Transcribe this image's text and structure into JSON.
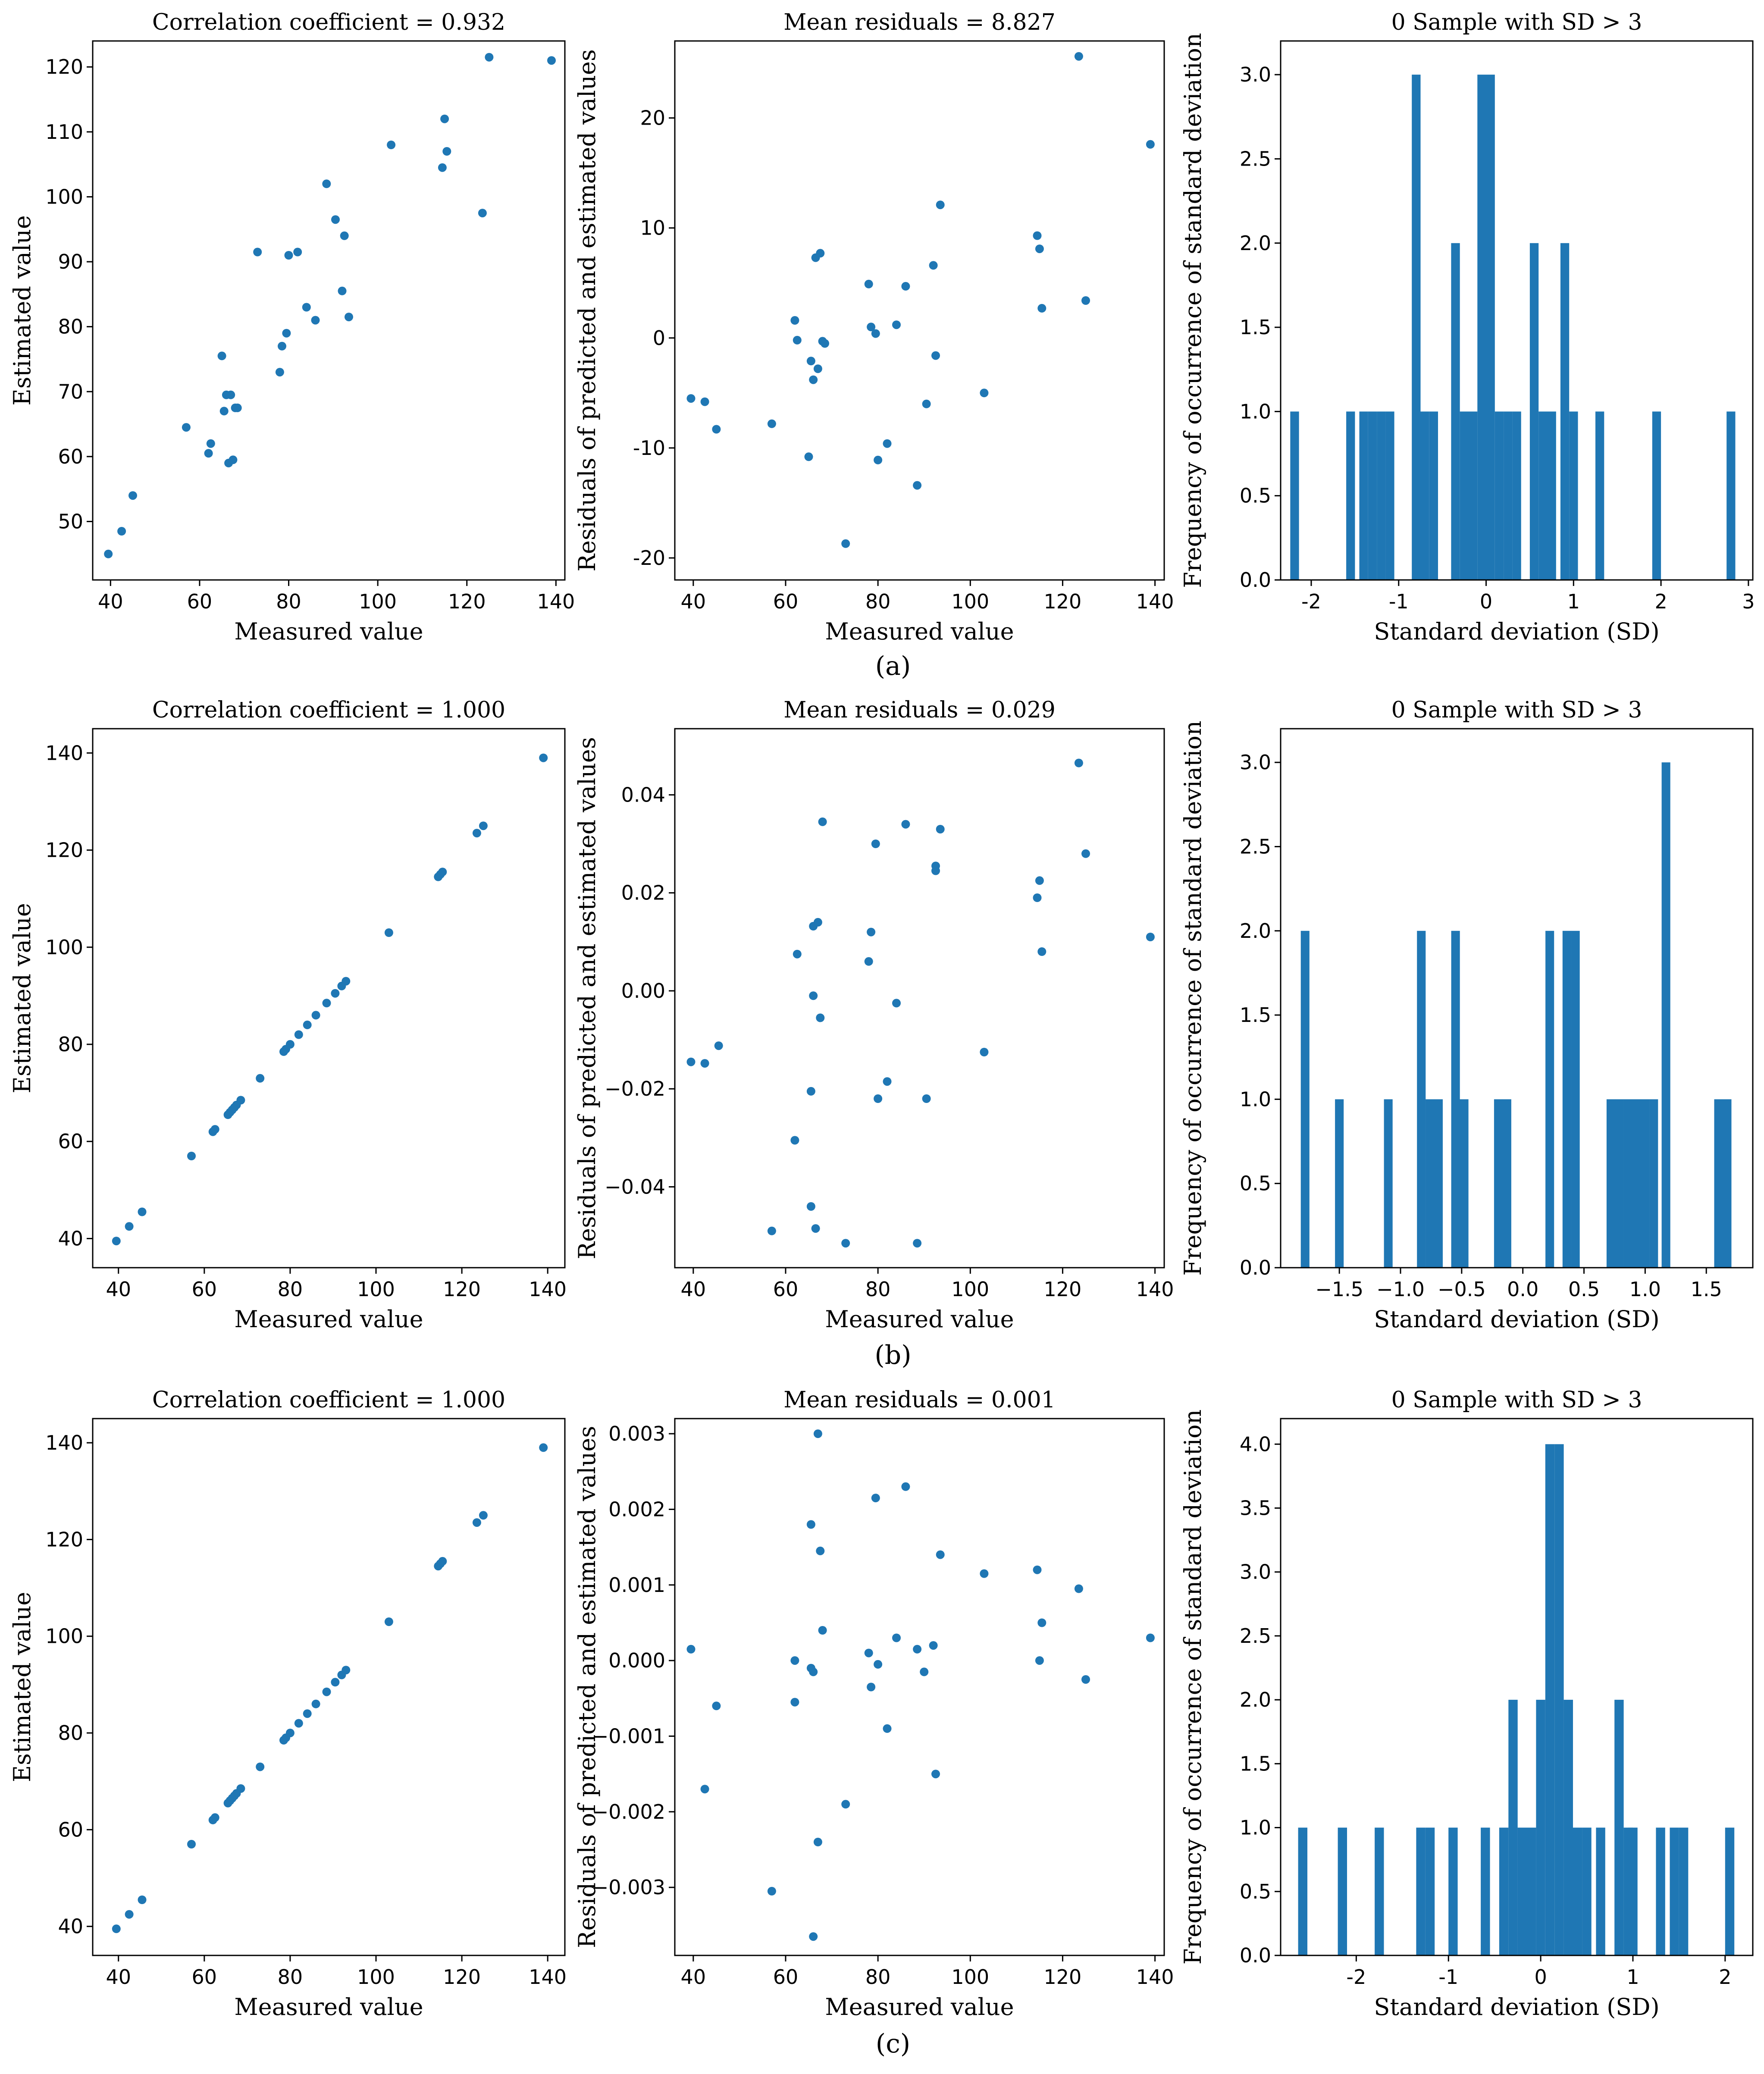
{
  "colors": {
    "series": "#1f77b4",
    "axis": "#000000",
    "background": "#ffffff"
  },
  "captions": [
    "(a)",
    "(b)",
    "(c)"
  ],
  "chart_data": [
    {
      "id": "a-scatter",
      "type": "scatter",
      "row": 0,
      "col": 0,
      "title": "Correlation coefficient = 0.932",
      "xlabel": "Measured value",
      "ylabel": "Estimated value",
      "xlim": [
        36,
        142
      ],
      "ylim": [
        41,
        124
      ],
      "xticks": [
        40,
        60,
        80,
        100,
        120,
        140
      ],
      "yticks": [
        50,
        60,
        70,
        80,
        90,
        100,
        110,
        120
      ],
      "x": [
        39.5,
        42.5,
        45.0,
        57.0,
        62.0,
        62.5,
        65.0,
        65.5,
        66.0,
        66.5,
        67.0,
        67.5,
        68.0,
        68.5,
        73.0,
        78.0,
        78.5,
        79.5,
        80.0,
        82.0,
        84.0,
        86.0,
        88.5,
        90.5,
        92.0,
        92.5,
        93.5,
        103.0,
        114.5,
        115.0,
        115.5,
        123.5,
        125.0,
        139.0
      ],
      "y": [
        45.0,
        48.5,
        54.0,
        64.5,
        60.5,
        62.0,
        75.5,
        67.0,
        69.5,
        59.0,
        69.5,
        59.5,
        67.5,
        67.5,
        91.5,
        73.0,
        77.0,
        79.0,
        91.0,
        91.5,
        83.0,
        81.0,
        102.0,
        96.5,
        85.5,
        94.0,
        81.5,
        108.0,
        104.5,
        112.0,
        107.0,
        97.5,
        121.5,
        121.0
      ]
    },
    {
      "id": "a-resid",
      "type": "scatter",
      "row": 0,
      "col": 1,
      "title": "Mean residuals = 8.827",
      "xlabel": "Measured value",
      "ylabel": "Residuals of predicted and estimated values",
      "xlim": [
        36,
        142
      ],
      "ylim": [
        -22,
        27
      ],
      "xticks": [
        40,
        60,
        80,
        100,
        120,
        140
      ],
      "yticks": [
        -20,
        -10,
        0,
        10,
        20
      ],
      "x": [
        39.5,
        42.5,
        45.0,
        57.0,
        62.0,
        62.5,
        65.0,
        65.5,
        66.0,
        66.5,
        67.0,
        67.5,
        68.0,
        68.5,
        73.0,
        78.0,
        78.5,
        79.5,
        80.0,
        82.0,
        84.0,
        86.0,
        88.5,
        90.5,
        92.0,
        92.5,
        93.5,
        103.0,
        114.5,
        115.0,
        115.5,
        123.5,
        125.0,
        139.0
      ],
      "y": [
        -5.5,
        -5.8,
        -8.3,
        -7.8,
        1.6,
        -0.2,
        -10.8,
        -2.1,
        -3.8,
        7.3,
        -2.8,
        7.7,
        -0.3,
        -0.5,
        -18.7,
        4.9,
        1.0,
        0.4,
        -11.1,
        -9.6,
        1.2,
        4.7,
        -13.4,
        -6.0,
        6.6,
        -1.6,
        12.1,
        -5.0,
        9.3,
        8.1,
        2.7,
        25.6,
        3.4,
        17.6
      ]
    },
    {
      "id": "a-hist",
      "type": "bar",
      "row": 0,
      "col": 2,
      "title": "0 Sample with SD > 3",
      "xlabel": "Standard deviation (SD)",
      "ylabel": "Frequency of occurrence of standard deviation",
      "xlim": [
        -2.35,
        3.05
      ],
      "ylim": [
        0,
        3.2
      ],
      "xticks": [
        -2,
        -1,
        0,
        1,
        2,
        3
      ],
      "yticks": [
        0.0,
        0.5,
        1.0,
        1.5,
        2.0,
        2.5,
        3.0
      ],
      "bin_width": 0.1,
      "bins": [
        [
          -2.19,
          1
        ],
        [
          -1.55,
          1
        ],
        [
          -1.4,
          1
        ],
        [
          -1.3,
          1
        ],
        [
          -1.2,
          1
        ],
        [
          -1.1,
          1
        ],
        [
          -0.8,
          3
        ],
        [
          -0.7,
          1
        ],
        [
          -0.6,
          1
        ],
        [
          -0.35,
          2
        ],
        [
          -0.25,
          1
        ],
        [
          -0.15,
          1
        ],
        [
          -0.05,
          3
        ],
        [
          0.05,
          3
        ],
        [
          0.15,
          1
        ],
        [
          0.25,
          1
        ],
        [
          0.35,
          1
        ],
        [
          0.55,
          2
        ],
        [
          0.65,
          1
        ],
        [
          0.75,
          1
        ],
        [
          0.9,
          2
        ],
        [
          1.0,
          1
        ],
        [
          1.3,
          1
        ],
        [
          1.95,
          1
        ],
        [
          2.8,
          1
        ]
      ]
    },
    {
      "id": "b-scatter",
      "type": "scatter",
      "row": 1,
      "col": 0,
      "title": "Correlation coefficient = 1.000",
      "xlabel": "Measured value",
      "ylabel": "Estimated value",
      "xlim": [
        34,
        144
      ],
      "ylim": [
        34,
        145
      ],
      "xticks": [
        40,
        60,
        80,
        100,
        120,
        140
      ],
      "yticks": [
        40,
        60,
        80,
        100,
        120,
        140
      ],
      "x": [
        39.5,
        42.5,
        45.5,
        57.0,
        62.0,
        62.5,
        65.5,
        66.0,
        66.5,
        67.0,
        67.5,
        68.5,
        73.0,
        78.5,
        79.0,
        80.0,
        82.0,
        84.0,
        86.0,
        88.5,
        90.5,
        92.0,
        93.0,
        103.0,
        114.5,
        115.0,
        115.5,
        123.5,
        125.0,
        139.0
      ],
      "y": [
        39.5,
        42.5,
        45.5,
        57.0,
        62.0,
        62.5,
        65.5,
        66.0,
        66.5,
        67.0,
        67.5,
        68.5,
        73.0,
        78.5,
        79.0,
        80.0,
        82.0,
        84.0,
        86.0,
        88.5,
        90.5,
        92.0,
        93.0,
        103.0,
        114.5,
        115.0,
        115.5,
        123.5,
        125.0,
        139.0
      ]
    },
    {
      "id": "b-resid",
      "type": "scatter",
      "row": 1,
      "col": 1,
      "title": "Mean residuals = 0.029",
      "xlabel": "Measured value",
      "ylabel": "Residuals of predicted and estimated values",
      "xlim": [
        36,
        142
      ],
      "ylim": [
        -0.0565,
        0.0535
      ],
      "xticks": [
        40,
        60,
        80,
        100,
        120,
        140
      ],
      "yticks": [
        -0.04,
        -0.02,
        0.0,
        0.02,
        0.04
      ],
      "ytick_labels": [
        "−0.04",
        "−0.02",
        "0.00",
        "0.02",
        "0.04"
      ],
      "x": [
        39.5,
        42.5,
        45.5,
        57.0,
        62.0,
        62.5,
        65.5,
        65.5,
        66.0,
        66.0,
        66.5,
        67.0,
        67.5,
        68.0,
        73.0,
        78.0,
        78.5,
        79.5,
        80.0,
        82.0,
        84.0,
        86.0,
        88.5,
        90.5,
        92.5,
        92.5,
        93.5,
        103.0,
        114.5,
        115.0,
        115.5,
        123.5,
        125.0,
        139.0
      ],
      "y": [
        -0.0145,
        -0.0148,
        -0.0112,
        -0.049,
        -0.0305,
        0.0075,
        -0.0205,
        -0.044,
        0.0132,
        -0.001,
        -0.0485,
        0.014,
        -0.0055,
        0.0345,
        -0.0515,
        0.006,
        0.012,
        0.03,
        -0.022,
        -0.0185,
        -0.0025,
        0.034,
        -0.0515,
        -0.022,
        0.0255,
        0.0245,
        0.033,
        -0.0125,
        0.019,
        0.0225,
        0.008,
        0.0465,
        0.028,
        0.011
      ]
    },
    {
      "id": "b-hist",
      "type": "bar",
      "row": 1,
      "col": 2,
      "title": "0 Sample with SD > 3",
      "xlabel": "Standard deviation (SD)",
      "ylabel": "Frequency of occurrence of standard deviation",
      "xlim": [
        -1.98,
        1.88
      ],
      "ylim": [
        0,
        3.2
      ],
      "xticks": [
        -1.5,
        -1.0,
        -0.5,
        0.0,
        0.5,
        1.0,
        1.5
      ],
      "xtick_labels": [
        "−1.5",
        "−1.0",
        "−0.5",
        "0.0",
        "0.5",
        "1.0",
        "1.5"
      ],
      "yticks": [
        0.0,
        0.5,
        1.0,
        1.5,
        2.0,
        2.5,
        3.0
      ],
      "bin_width": 0.0707,
      "bins": [
        [
          -1.78,
          2
        ],
        [
          -1.5,
          1
        ],
        [
          -1.1,
          1
        ],
        [
          -0.83,
          2
        ],
        [
          -0.76,
          1
        ],
        [
          -0.69,
          1
        ],
        [
          -0.55,
          2
        ],
        [
          -0.48,
          1
        ],
        [
          -0.2,
          1
        ],
        [
          -0.13,
          1
        ],
        [
          0.22,
          2
        ],
        [
          0.36,
          2
        ],
        [
          0.43,
          2
        ],
        [
          0.72,
          1
        ],
        [
          0.79,
          1
        ],
        [
          0.86,
          1
        ],
        [
          0.93,
          1
        ],
        [
          1.0,
          1
        ],
        [
          1.07,
          1
        ],
        [
          1.17,
          3
        ],
        [
          1.6,
          1
        ],
        [
          1.67,
          1
        ]
      ]
    },
    {
      "id": "c-scatter",
      "type": "scatter",
      "row": 2,
      "col": 0,
      "title": "Correlation coefficient = 1.000",
      "xlabel": "Measured value",
      "ylabel": "Estimated value",
      "xlim": [
        34,
        144
      ],
      "ylim": [
        34,
        145
      ],
      "xticks": [
        40,
        60,
        80,
        100,
        120,
        140
      ],
      "yticks": [
        40,
        60,
        80,
        100,
        120,
        140
      ],
      "x": [
        39.5,
        42.5,
        45.5,
        57.0,
        62.0,
        62.5,
        65.5,
        66.0,
        66.5,
        67.0,
        67.5,
        68.5,
        73.0,
        78.5,
        79.0,
        80.0,
        82.0,
        84.0,
        86.0,
        88.5,
        90.5,
        92.0,
        93.0,
        103.0,
        114.5,
        115.0,
        115.5,
        123.5,
        125.0,
        139.0
      ],
      "y": [
        39.5,
        42.5,
        45.5,
        57.0,
        62.0,
        62.5,
        65.5,
        66.0,
        66.5,
        67.0,
        67.5,
        68.5,
        73.0,
        78.5,
        79.0,
        80.0,
        82.0,
        84.0,
        86.0,
        88.5,
        90.5,
        92.0,
        93.0,
        103.0,
        114.5,
        115.0,
        115.5,
        123.5,
        125.0,
        139.0
      ]
    },
    {
      "id": "c-resid",
      "type": "scatter",
      "row": 2,
      "col": 1,
      "title": "Mean residuals = 0.001",
      "xlabel": "Measured value",
      "ylabel": "Residuals of predicted and estimated values",
      "xlim": [
        36,
        142
      ],
      "ylim": [
        -0.0039,
        0.0032
      ],
      "xticks": [
        40,
        60,
        80,
        100,
        120,
        140
      ],
      "yticks": [
        -0.003,
        -0.002,
        -0.001,
        0.0,
        0.001,
        0.002,
        0.003
      ],
      "ytick_labels": [
        "−0.003",
        "−0.002",
        "−0.001",
        "0.000",
        "0.001",
        "0.002",
        "0.003"
      ],
      "x": [
        39.5,
        42.5,
        45.0,
        57.0,
        62.0,
        62.0,
        65.5,
        65.5,
        66.0,
        66.0,
        67.0,
        67.0,
        67.5,
        68.0,
        73.0,
        78.0,
        78.5,
        79.5,
        80.0,
        82.0,
        84.0,
        86.0,
        88.5,
        90.0,
        92.0,
        92.5,
        93.5,
        103.0,
        114.5,
        115.0,
        115.5,
        123.5,
        125.0,
        139.0
      ],
      "y": [
        0.00015,
        -0.0017,
        -0.0006,
        -0.00305,
        -0.00055,
        0.0,
        0.0018,
        -0.0001,
        -0.00365,
        -0.00015,
        0.003,
        -0.0024,
        0.00145,
        0.0004,
        -0.0019,
        0.0001,
        -0.00035,
        0.00215,
        -5e-05,
        -0.0009,
        0.0003,
        0.0023,
        0.00015,
        -0.00015,
        0.0002,
        -0.0015,
        0.0014,
        0.00115,
        0.0012,
        0.0,
        0.0005,
        0.00095,
        -0.00025,
        0.0003
      ]
    },
    {
      "id": "c-hist",
      "type": "bar",
      "row": 2,
      "col": 2,
      "title": "0 Sample with SD > 3",
      "xlabel": "Standard deviation (SD)",
      "ylabel": "Frequency of occurrence of standard deviation",
      "xlim": [
        -2.82,
        2.3
      ],
      "ylim": [
        0,
        4.2
      ],
      "xticks": [
        -2,
        -1,
        0,
        1,
        2
      ],
      "yticks": [
        0.0,
        0.5,
        1.0,
        1.5,
        2.0,
        2.5,
        3.0,
        3.5,
        4.0
      ],
      "bin_width": 0.1,
      "bins": [
        [
          -2.58,
          1
        ],
        [
          -2.15,
          1
        ],
        [
          -1.75,
          1
        ],
        [
          -1.3,
          1
        ],
        [
          -1.2,
          1
        ],
        [
          -0.95,
          1
        ],
        [
          -0.6,
          1
        ],
        [
          -0.4,
          1
        ],
        [
          -0.3,
          2
        ],
        [
          -0.2,
          1
        ],
        [
          -0.1,
          1
        ],
        [
          0.0,
          2
        ],
        [
          0.1,
          4
        ],
        [
          0.2,
          4
        ],
        [
          0.3,
          2
        ],
        [
          0.4,
          1
        ],
        [
          0.5,
          1
        ],
        [
          0.65,
          1
        ],
        [
          0.85,
          2
        ],
        [
          0.95,
          1
        ],
        [
          1.0,
          1
        ],
        [
          1.3,
          1
        ],
        [
          1.45,
          1
        ],
        [
          1.55,
          1
        ],
        [
          2.05,
          1
        ]
      ]
    }
  ]
}
